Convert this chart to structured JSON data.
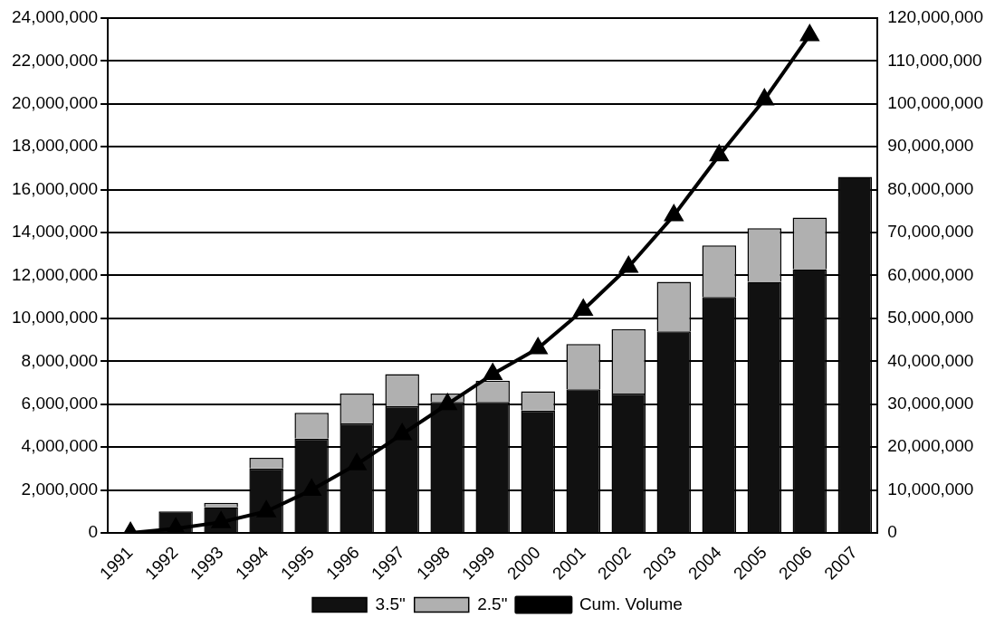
{
  "chart_data": {
    "type": "bar",
    "stacked": true,
    "categories": [
      "1991",
      "1992",
      "1993",
      "1994",
      "1995",
      "1996",
      "1997",
      "1998",
      "1999",
      "2000",
      "2001",
      "2002",
      "2003",
      "2004",
      "2005",
      "2006",
      "2007"
    ],
    "series": [
      {
        "name": "3.5\"",
        "color": "#111111",
        "values": [
          0,
          1000000.0,
          1200000.0,
          3000000.0,
          4400000.0,
          5100000.0,
          5900000.0,
          6100000.0,
          6100000.0,
          5700000.0,
          6700000.0,
          6500000.0,
          9400000.0,
          11000000.0,
          11700000.0,
          12300000.0,
          16600000.0
        ]
      },
      {
        "name": "2.5\"",
        "color": "#b0b0b0",
        "values": [
          0,
          0,
          200000.0,
          500000.0,
          1200000.0,
          1400000.0,
          1500000.0,
          400000.0,
          1000000.0,
          900000.0,
          2100000.0,
          3000000.0,
          2300000.0,
          2400000.0,
          2500000.0,
          2400000.0,
          0
        ]
      },
      {
        "name": "Cum. Volume",
        "type": "line",
        "axis": "y2",
        "color": "#000000",
        "marker": "triangle",
        "values": [
          0,
          1000000.0,
          2500000.0,
          5000000.0,
          10000000.0,
          16000000.0,
          23000000.0,
          30000000.0,
          37000000.0,
          43000000.0,
          52000000.0,
          62000000.0,
          74000000.0,
          88000000.0,
          101000000.0,
          116000000.0,
          null
        ]
      }
    ],
    "ylim": [
      0,
      24000000
    ],
    "yticks": [
      0,
      {
        "value": 2000000,
        "label": "2,000,000"
      },
      {
        "value": 4000000,
        "label": "4,000,000"
      },
      {
        "value": 6000000,
        "label": "6,000,000"
      },
      {
        "value": 8000000,
        "label": "8,000,000"
      },
      {
        "value": 10000000,
        "label": "10,000,000"
      },
      {
        "value": 12000000,
        "label": "12,000,000"
      },
      {
        "value": 14000000,
        "label": "14,000,000"
      },
      {
        "value": 16000000,
        "label": "16,000,000"
      },
      {
        "value": 18000000,
        "label": "18,000,000"
      },
      {
        "value": 20000000,
        "label": "20,000,000"
      },
      {
        "value": 22000000,
        "label": "22,000,000"
      },
      {
        "value": 24000000,
        "label": "24,000,000"
      }
    ],
    "y2lim": [
      0,
      120000000
    ],
    "y2ticks": [
      0,
      {
        "value": 10000000,
        "label": "10,000,000"
      },
      {
        "value": 20000000,
        "label": "20,000,000"
      },
      {
        "value": 30000000,
        "label": "30,000,000"
      },
      {
        "value": 40000000,
        "label": "40,000,000"
      },
      {
        "value": 50000000,
        "label": "50,000,000"
      },
      {
        "value": 60000000,
        "label": "60,000,000"
      },
      {
        "value": 70000000,
        "label": "70,000,000"
      },
      {
        "value": 80000000,
        "label": "80,000,000"
      },
      {
        "value": 90000000,
        "label": "90,000,000"
      },
      {
        "value": 100000000,
        "label": "100,000,000"
      },
      {
        "value": 110000000,
        "label": "110,000,000"
      },
      {
        "value": 120000000,
        "label": "120,000,000"
      }
    ],
    "grid": "y",
    "legend": "bottom"
  }
}
